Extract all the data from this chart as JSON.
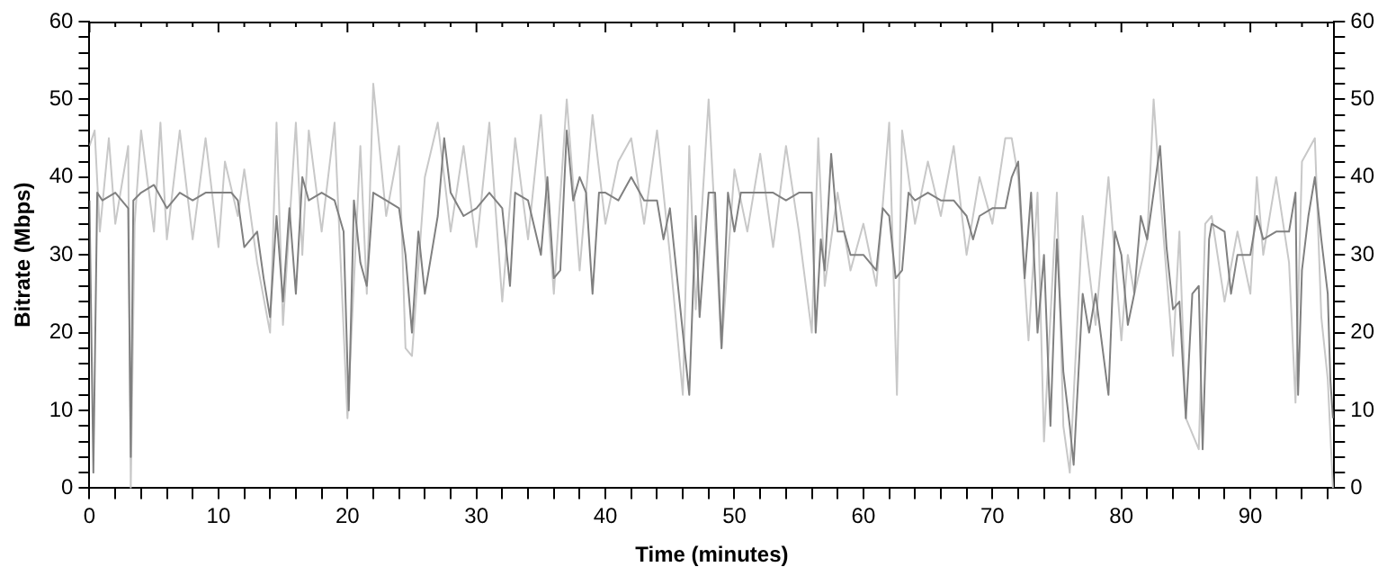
{
  "chart_data": {
    "type": "line",
    "xlabel": "Time (minutes)",
    "ylabel": "Bitrate (Mbps)",
    "xlim": [
      0,
      96.5
    ],
    "ylim": [
      0,
      60
    ],
    "xticks": [
      0,
      {
        "value": 2,
        "label": null
      },
      {
        "value": 4,
        "label": null
      },
      {
        "value": 6,
        "label": null
      },
      {
        "value": 8,
        "label": null
      },
      10,
      {
        "value": 12,
        "label": null
      },
      {
        "value": 14,
        "label": null
      },
      {
        "value": 16,
        "label": null
      },
      {
        "value": 18,
        "label": null
      },
      20,
      {
        "value": 22,
        "label": null
      },
      {
        "value": 24,
        "label": null
      },
      {
        "value": 26,
        "label": null
      },
      {
        "value": 28,
        "label": null
      },
      30,
      {
        "value": 32,
        "label": null
      },
      {
        "value": 34,
        "label": null
      },
      {
        "value": 36,
        "label": null
      },
      {
        "value": 38,
        "label": null
      },
      40,
      {
        "value": 42,
        "label": null
      },
      {
        "value": 44,
        "label": null
      },
      {
        "value": 46,
        "label": null
      },
      {
        "value": 48,
        "label": null
      },
      50,
      {
        "value": 52,
        "label": null
      },
      {
        "value": 54,
        "label": null
      },
      {
        "value": 56,
        "label": null
      },
      {
        "value": 58,
        "label": null
      },
      60,
      {
        "value": 62,
        "label": null
      },
      {
        "value": 64,
        "label": null
      },
      {
        "value": 66,
        "label": null
      },
      {
        "value": 68,
        "label": null
      },
      70,
      {
        "value": 72,
        "label": null
      },
      {
        "value": 74,
        "label": null
      },
      {
        "value": 76,
        "label": null
      },
      {
        "value": 78,
        "label": null
      },
      80,
      {
        "value": 82,
        "label": null
      },
      {
        "value": 84,
        "label": null
      },
      {
        "value": 86,
        "label": null
      },
      {
        "value": 88,
        "label": null
      },
      90,
      {
        "value": 92,
        "label": null
      },
      {
        "value": 94,
        "label": null
      },
      {
        "value": 96,
        "label": null
      }
    ],
    "yticks": [
      0,
      {
        "value": 2,
        "label": null
      },
      {
        "value": 4,
        "label": null
      },
      {
        "value": 6,
        "label": null
      },
      {
        "value": 8,
        "label": null
      },
      10,
      {
        "value": 12,
        "label": null
      },
      {
        "value": 14,
        "label": null
      },
      {
        "value": 16,
        "label": null
      },
      {
        "value": 18,
        "label": null
      },
      20,
      {
        "value": 22,
        "label": null
      },
      {
        "value": 24,
        "label": null
      },
      {
        "value": 26,
        "label": null
      },
      {
        "value": 28,
        "label": null
      },
      30,
      {
        "value": 32,
        "label": null
      },
      {
        "value": 34,
        "label": null
      },
      {
        "value": 36,
        "label": null
      },
      {
        "value": 38,
        "label": null
      },
      40,
      {
        "value": 42,
        "label": null
      },
      {
        "value": 44,
        "label": null
      },
      {
        "value": 46,
        "label": null
      },
      {
        "value": 48,
        "label": null
      },
      50,
      {
        "value": 52,
        "label": null
      },
      {
        "value": 54,
        "label": null
      },
      {
        "value": 56,
        "label": null
      },
      {
        "value": 58,
        "label": null
      },
      60
    ],
    "y2lim": [
      0,
      60
    ],
    "y2ticks": [
      0,
      {
        "value": 2,
        "label": null
      },
      {
        "value": 4,
        "label": null
      },
      {
        "value": 6,
        "label": null
      },
      {
        "value": 8,
        "label": null
      },
      10,
      {
        "value": 12,
        "label": null
      },
      {
        "value": 14,
        "label": null
      },
      {
        "value": 16,
        "label": null
      },
      {
        "value": 18,
        "label": null
      },
      20,
      {
        "value": 22,
        "label": null
      },
      {
        "value": 24,
        "label": null
      },
      {
        "value": 26,
        "label": null
      },
      {
        "value": 28,
        "label": null
      },
      30,
      {
        "value": 32,
        "label": null
      },
      {
        "value": 34,
        "label": null
      },
      {
        "value": 36,
        "label": null
      },
      {
        "value": 38,
        "label": null
      },
      40,
      {
        "value": 42,
        "label": null
      },
      {
        "value": 44,
        "label": null
      },
      {
        "value": 46,
        "label": null
      },
      {
        "value": 48,
        "label": null
      },
      50,
      {
        "value": 52,
        "label": null
      },
      {
        "value": 54,
        "label": null
      },
      {
        "value": 56,
        "label": null
      },
      {
        "value": 58,
        "label": null
      },
      60
    ],
    "grid": false,
    "legend": false,
    "marker": "none",
    "line_style": "solid",
    "series": [
      {
        "color": "#c8c8c8",
        "x": [
          0,
          0.4,
          0.8,
          1.5,
          2,
          3,
          3.2,
          3.5,
          4,
          5,
          5.5,
          6,
          7,
          8,
          9,
          10,
          10.5,
          11.5,
          12,
          13,
          14,
          14.5,
          15,
          16,
          16.5,
          17,
          18,
          19,
          20,
          21,
          21.5,
          22,
          23,
          24,
          24.5,
          25,
          26,
          27,
          28,
          29,
          30,
          31,
          32,
          33,
          34,
          35,
          36,
          37,
          38,
          39,
          40,
          41,
          42,
          43,
          44,
          45,
          46,
          46.5,
          47,
          48,
          49,
          50,
          51,
          52,
          53,
          54,
          55,
          56,
          56.5,
          57,
          58,
          59,
          60,
          61,
          62,
          62.6,
          63,
          64,
          65,
          66,
          67,
          68,
          69,
          70,
          71,
          71.5,
          72,
          72.8,
          73.5,
          74,
          75,
          75.5,
          76,
          77,
          78,
          79,
          80,
          80.5,
          81,
          82,
          82.5,
          83,
          84,
          84.5,
          85,
          86,
          86.5,
          87,
          88,
          89,
          90,
          90.5,
          91,
          92,
          93,
          93.5,
          94,
          95,
          95.5,
          96,
          96.4
        ],
        "values": [
          44,
          46,
          33,
          45,
          34,
          44,
          0,
          34,
          46,
          33,
          47,
          32,
          46,
          32,
          45,
          31,
          42,
          35,
          41,
          29,
          20,
          47,
          21,
          47,
          30,
          46,
          33,
          47,
          9,
          44,
          25,
          52,
          35,
          44,
          18,
          17,
          40,
          47,
          33,
          44,
          31,
          47,
          24,
          45,
          32,
          48,
          25,
          50,
          28,
          48,
          34,
          42,
          45,
          34,
          46,
          30,
          12,
          44,
          23,
          50,
          18,
          41,
          33,
          43,
          31,
          44,
          33,
          20,
          45,
          26,
          38,
          28,
          34,
          26,
          47,
          12,
          46,
          34,
          42,
          35,
          44,
          30,
          40,
          34,
          45,
          45,
          40,
          19,
          38,
          6,
          38,
          8,
          2,
          35,
          21,
          40,
          19,
          30,
          25,
          32,
          50,
          38,
          17,
          33,
          9,
          5,
          34,
          35,
          24,
          33,
          25,
          40,
          30,
          40,
          29,
          11,
          42,
          45,
          22,
          14,
          0
        ]
      },
      {
        "color": "#808080",
        "x": [
          0,
          0.3,
          0.6,
          1,
          2,
          3,
          3.2,
          3.4,
          4,
          5,
          6,
          7,
          8,
          9,
          10,
          11,
          11.5,
          12,
          13,
          13.5,
          14,
          14.5,
          15,
          15.5,
          16,
          16.5,
          17,
          18,
          19,
          19.7,
          20.1,
          20.5,
          21,
          21.5,
          22,
          23,
          24,
          24.5,
          25,
          25.5,
          26,
          27,
          27.5,
          28,
          29,
          30,
          31,
          32,
          32.6,
          33,
          34,
          35,
          35.5,
          36,
          36.5,
          37,
          37.5,
          38,
          38.5,
          39,
          39.5,
          40,
          41,
          42,
          43,
          44,
          44.5,
          45,
          45.5,
          46,
          46.5,
          47,
          47.3,
          48,
          48.5,
          49,
          49.5,
          50,
          50.5,
          51,
          52,
          53,
          54,
          55,
          56,
          56.3,
          56.7,
          57,
          57.5,
          58,
          58.5,
          59,
          60,
          61,
          61.5,
          62,
          62.5,
          63,
          63.5,
          64,
          65,
          66,
          67,
          68,
          68.5,
          69,
          70,
          71,
          71.5,
          72,
          72.5,
          73,
          73.5,
          74,
          74.5,
          75,
          75.5,
          76,
          76.3,
          77,
          77.5,
          78,
          79,
          79.5,
          80,
          80.5,
          81,
          81.5,
          82,
          82.5,
          83,
          83.5,
          84,
          84.5,
          85,
          85.5,
          86,
          86.3,
          86.8,
          87,
          88,
          88.5,
          89,
          90,
          90.5,
          91,
          92,
          93,
          93.5,
          93.7,
          94,
          94.5,
          95,
          95.5,
          96,
          96.2,
          96.4
        ],
        "values": [
          37,
          2,
          38,
          37,
          38,
          36,
          4,
          37,
          38,
          39,
          36,
          38,
          37,
          38,
          38,
          38,
          37,
          31,
          33,
          27,
          22,
          35,
          24,
          36,
          25,
          40,
          37,
          38,
          37,
          33,
          10,
          37,
          29,
          26,
          38,
          37,
          36,
          30,
          20,
          33,
          25,
          35,
          45,
          38,
          35,
          36,
          38,
          36,
          26,
          38,
          37,
          30,
          40,
          27,
          28,
          46,
          37,
          40,
          38,
          25,
          38,
          38,
          37,
          40,
          37,
          37,
          32,
          36,
          28,
          20,
          12,
          35,
          22,
          38,
          38,
          18,
          38,
          33,
          38,
          38,
          38,
          38,
          37,
          38,
          38,
          20,
          32,
          28,
          43,
          33,
          33,
          30,
          30,
          28,
          36,
          35,
          27,
          28,
          38,
          37,
          38,
          37,
          37,
          35,
          32,
          35,
          36,
          36,
          40,
          42,
          27,
          38,
          20,
          30,
          8,
          32,
          15,
          8,
          3,
          25,
          20,
          25,
          12,
          33,
          30,
          21,
          25,
          35,
          32,
          38,
          44,
          31,
          23,
          24,
          9,
          25,
          26,
          5,
          32,
          34,
          33,
          25,
          30,
          30,
          35,
          32,
          33,
          33,
          38,
          12,
          28,
          35,
          40,
          32,
          25,
          14,
          9
        ]
      }
    ]
  }
}
